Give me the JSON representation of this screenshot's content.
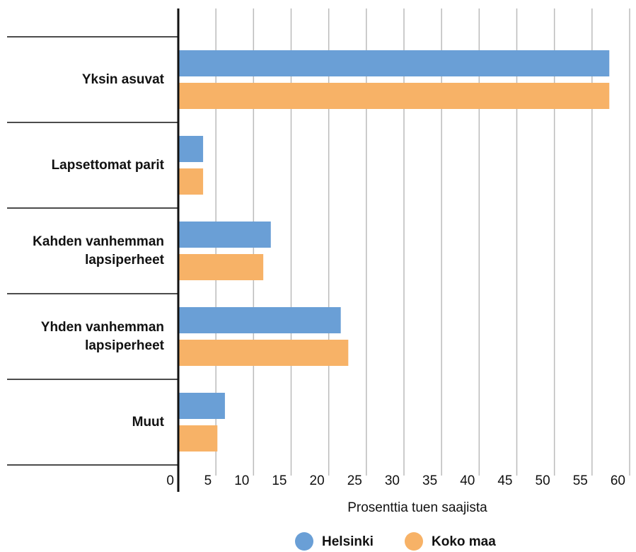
{
  "chart_data": {
    "type": "hbar",
    "categories": [
      "Yksin asuvat",
      "Lapsettomat parit",
      "Kahden vanhemman lapsiperheet",
      "Yhden vanhemman lapsiperheet",
      "Muut"
    ],
    "series": [
      {
        "name": "Helsinki",
        "color": "#6a9fd6",
        "values": [
          57.3,
          3.3,
          12.3,
          21.6,
          6.2
        ]
      },
      {
        "name": "Koko maa",
        "color": "#f7b267",
        "values": [
          57.3,
          3.3,
          11.3,
          22.6,
          5.2
        ]
      }
    ],
    "xlabel": "Prosenttia tuen saajista",
    "xlim": [
      0,
      60
    ],
    "xticks": [
      0,
      5,
      10,
      15,
      20,
      25,
      30,
      35,
      40,
      45,
      50,
      55,
      60
    ],
    "grid": true,
    "legend": "bottom"
  }
}
